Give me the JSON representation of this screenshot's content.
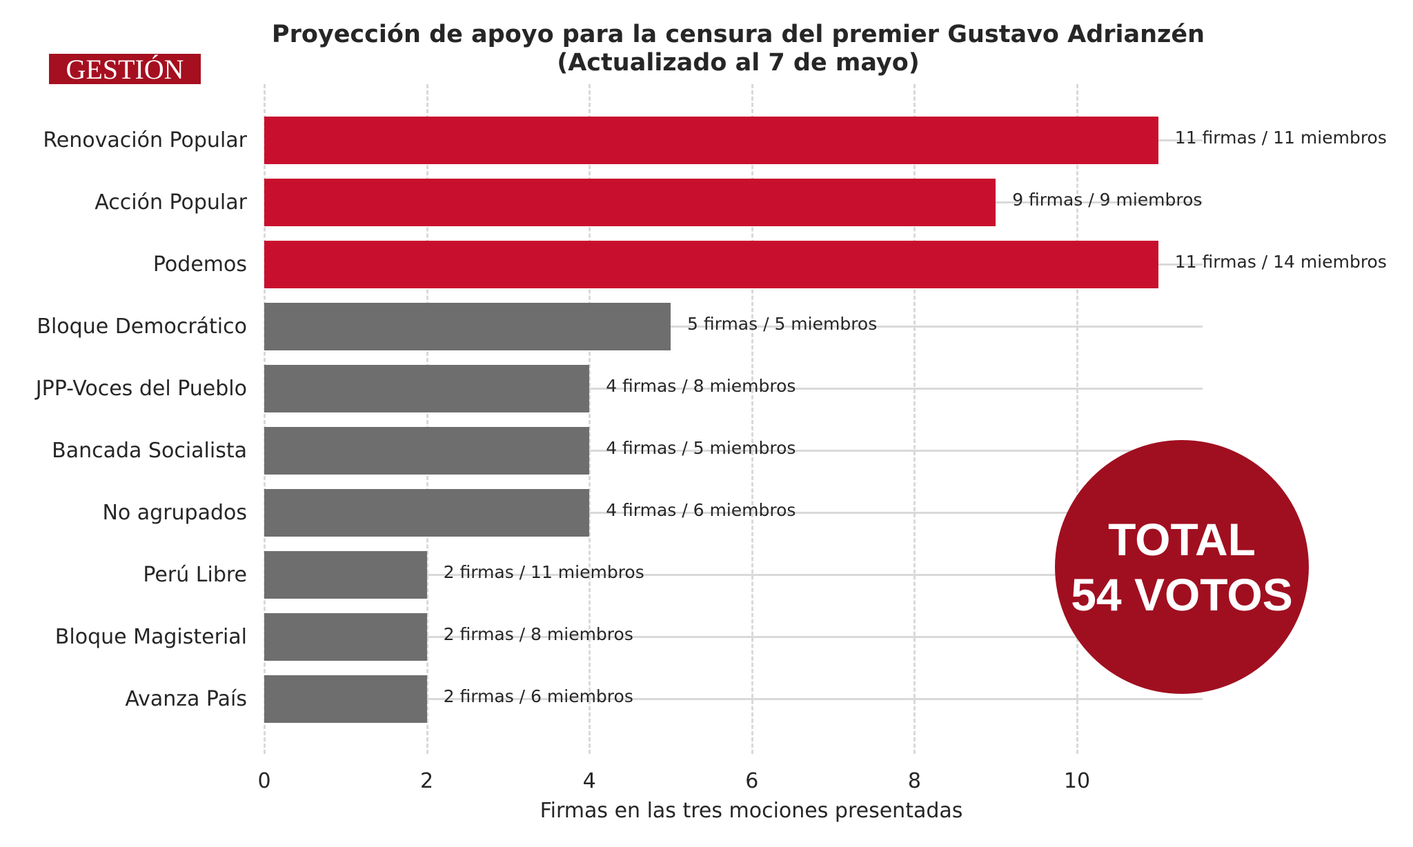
{
  "logo": {
    "text": "GESTIÓN",
    "color": "#a50f20"
  },
  "header": {
    "title_line1": "Proyección de apoyo para la censura del premier Gustavo Adrianzén",
    "title_line2": "(Actualizado al 7 de mayo)"
  },
  "total_badge": {
    "line1": "TOTAL",
    "line2": "54 VOTOS",
    "color": "#a00f20"
  },
  "colors": {
    "highlight": "#c8102e",
    "default": "#6e6e6e",
    "grid": "#d9d9d9"
  },
  "chart_data": {
    "type": "bar",
    "orientation": "horizontal",
    "title": "Proyección de apoyo para la censura del premier Gustavo Adrianzén (Actualizado al 7 de mayo)",
    "xlabel": "Firmas en las tres mociones presentadas",
    "ylabel": "",
    "xlim": [
      0,
      11.6
    ],
    "xticks": [
      0,
      2,
      4,
      6,
      8,
      10
    ],
    "grid": {
      "x": "dashed",
      "y": "solid-light"
    },
    "categories": [
      "Renovación Popular",
      "Acción Popular",
      "Podemos",
      "Bloque Democrático",
      "JPP-Voces del Pueblo",
      "Bancada Socialista",
      "No agrupados",
      "Perú Libre",
      "Bloque Magisterial",
      "Avanza País"
    ],
    "values": [
      11,
      9,
      11,
      5,
      4,
      4,
      4,
      2,
      2,
      2
    ],
    "members": [
      11,
      9,
      14,
      5,
      8,
      5,
      6,
      11,
      8,
      6
    ],
    "bar_labels": [
      "11 firmas / 11 miembros",
      "9 firmas / 9 miembros",
      "11 firmas / 14 miembros",
      "5 firmas / 5 miembros",
      "4 firmas / 8 miembros",
      "4 firmas / 5 miembros",
      "4 firmas / 6 miembros",
      "2 firmas / 11 miembros",
      "2 firmas / 8 miembros",
      "2 firmas / 6 miembros"
    ],
    "highlighted": [
      true,
      true,
      true,
      false,
      false,
      false,
      false,
      false,
      false,
      false
    ],
    "annotation": "TOTAL 54 VOTOS"
  }
}
